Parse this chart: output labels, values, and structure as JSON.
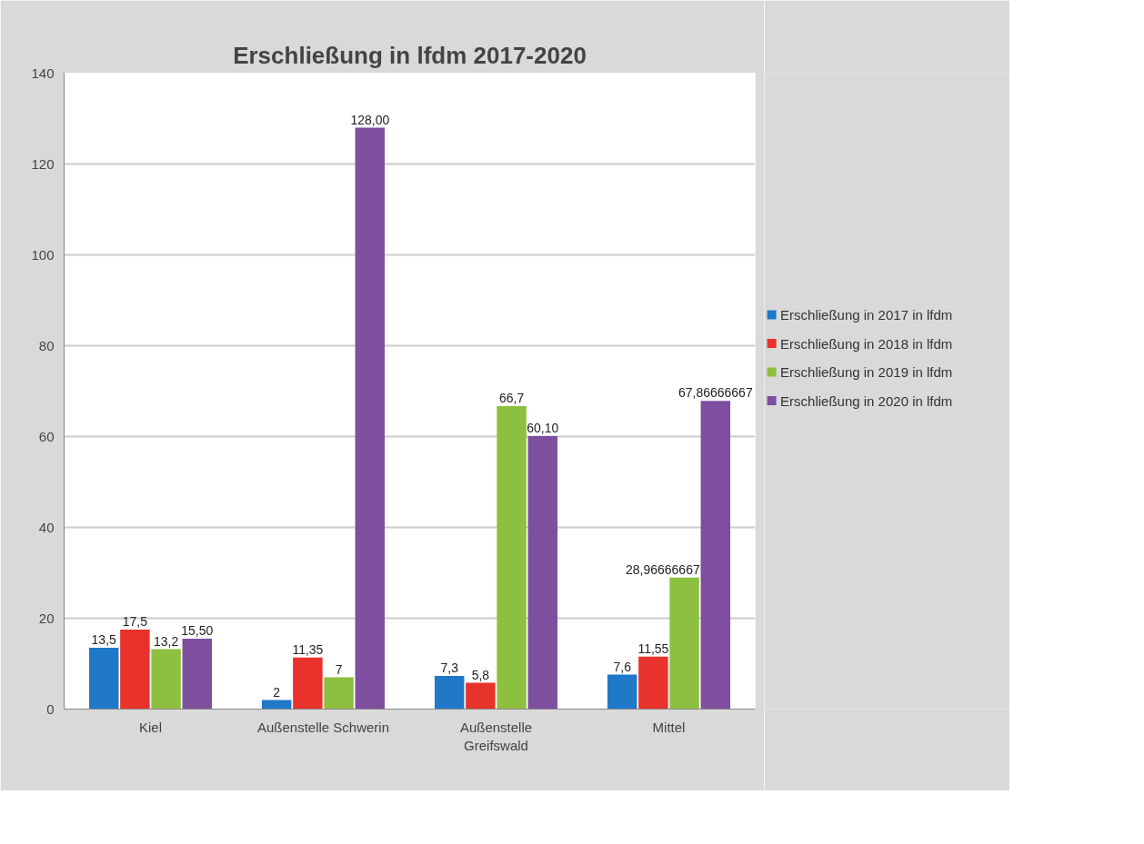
{
  "chart_data": {
    "type": "bar",
    "title": "Erschließung in lfdm 2017-2020",
    "categories": [
      "Kiel",
      "Außenstelle Schwerin",
      "Außenstelle Greifswald",
      "Mittel"
    ],
    "series": [
      {
        "name": "Erschließung in 2017 in lfdm",
        "color": "#1f78c8",
        "values": [
          13.5,
          2,
          7.3,
          7.6
        ],
        "value_labels": [
          "13,5",
          "2",
          "7,3",
          "7,6"
        ]
      },
      {
        "name": "Erschließung in 2018 in lfdm",
        "color": "#e8322b",
        "values": [
          17.5,
          11.35,
          5.8,
          11.55
        ],
        "value_labels": [
          "17,5",
          "11,35",
          "5,8",
          "11,55"
        ]
      },
      {
        "name": "Erschließung in 2019 in lfdm",
        "color": "#8dc03f",
        "values": [
          13.2,
          7,
          66.7,
          28.96666667
        ],
        "value_labels": [
          "13,2",
          "7",
          "66,7",
          "28,96666667"
        ]
      },
      {
        "name": "Erschließung in 2020 in lfdm",
        "color": "#7e4f9f",
        "values": [
          15.5,
          128,
          60.1,
          67.86666667
        ],
        "value_labels": [
          "15,50",
          "128,00",
          "60,10",
          "67,86666667"
        ]
      }
    ],
    "ylim": [
      0,
      140
    ],
    "yticks": [
      0,
      20,
      40,
      60,
      80,
      100,
      120,
      140
    ],
    "grid": "y",
    "legend": "right"
  }
}
